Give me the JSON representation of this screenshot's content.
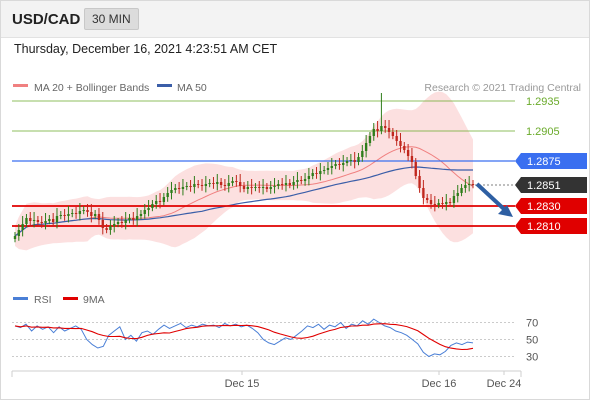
{
  "header": {
    "symbol": "USD/CAD",
    "interval": "30 MIN"
  },
  "timestamp": "Thursday, December 16, 2021 4:23:51 AM CET",
  "copyright": "Research © 2021 Trading Central",
  "colors": {
    "bollinger": "#f08080",
    "ma50": "#3b5ea8",
    "resistance": "#3a6ff0",
    "support": "#e00000",
    "target": "#6aaa2a",
    "last": "#333333",
    "rsi": "#4a7fd6",
    "rsi_ma": "#e00000",
    "arrow": "#2e5fa3"
  },
  "chart_data": [
    {
      "type": "candlestick",
      "title": "USD/CAD",
      "legend": [
        {
          "name": "MA 20 + Bollinger Bands",
          "color": "#f08080"
        },
        {
          "name": "MA 50",
          "color": "#3b5ea8"
        }
      ],
      "legend_position": "top-left",
      "y_range": [
        1.275,
        1.2955
      ],
      "x_ticks": [
        "Dec 15",
        "Dec 16",
        "Dec 24"
      ],
      "levels": [
        {
          "label": "1.2935",
          "value": 1.2935,
          "kind": "target"
        },
        {
          "label": "1.2905",
          "value": 1.2905,
          "kind": "target"
        },
        {
          "label": "1.2875",
          "value": 1.2875,
          "kind": "resistance"
        },
        {
          "label": "1.2851",
          "value": 1.2851,
          "kind": "last"
        },
        {
          "label": "1.2830",
          "value": 1.283,
          "kind": "support"
        },
        {
          "label": "1.2810",
          "value": 1.281,
          "kind": "support"
        }
      ],
      "close": [
        1.28,
        1.2806,
        1.2812,
        1.2818,
        1.2815,
        1.2816,
        1.2814,
        1.2813,
        1.2815,
        1.2817,
        1.2814,
        1.282,
        1.2821,
        1.282,
        1.2822,
        1.2823,
        1.2822,
        1.2825,
        1.2826,
        1.2824,
        1.282,
        1.2822,
        1.2816,
        1.2808,
        1.2806,
        1.281,
        1.2812,
        1.2814,
        1.2813,
        1.2816,
        1.2818,
        1.2816,
        1.282,
        1.2822,
        1.2826,
        1.2828,
        1.2832,
        1.2835,
        1.2834,
        1.2839,
        1.2843,
        1.2846,
        1.2848,
        1.2847,
        1.2849,
        1.285,
        1.2849,
        1.2852,
        1.2851,
        1.285,
        1.2852,
        1.2853,
        1.2852,
        1.2854,
        1.2851,
        1.285,
        1.2853,
        1.2855,
        1.2854,
        1.285,
        1.2847,
        1.2849,
        1.2848,
        1.2849,
        1.2848,
        1.2849,
        1.2847,
        1.2849,
        1.285,
        1.2852,
        1.2851,
        1.2853,
        1.2851,
        1.2854,
        1.2856,
        1.2855,
        1.2857,
        1.286,
        1.2863,
        1.2862,
        1.2865,
        1.2866,
        1.2868,
        1.287,
        1.2872,
        1.2871,
        1.2873,
        1.2875,
        1.2876,
        1.2874,
        1.2879,
        1.2885,
        1.2893,
        1.29,
        1.2907,
        1.2905,
        1.291,
        1.2908,
        1.2904,
        1.29,
        1.2895,
        1.289,
        1.2886,
        1.288,
        1.2874,
        1.286,
        1.2848,
        1.2838,
        1.2836,
        1.2832,
        1.2831,
        1.2833,
        1.2832,
        1.2834,
        1.2833,
        1.284,
        1.2843,
        1.2848,
        1.2851,
        1.2852,
        1.2851
      ]
    },
    {
      "type": "line",
      "title": "RSI",
      "legend": [
        {
          "name": "RSI",
          "color": "#4a7fd6"
        },
        {
          "name": "9MA",
          "color": "#e00000"
        }
      ],
      "legend_position": "top-left",
      "y_range": [
        20,
        80
      ],
      "y_ticks": [
        70,
        50,
        30
      ],
      "rsi": [
        66,
        64,
        68,
        60,
        66,
        62,
        65,
        58,
        65,
        60,
        63,
        66,
        62,
        50,
        44,
        40,
        42,
        55,
        60,
        65,
        50,
        55,
        48,
        58,
        60,
        56,
        62,
        67,
        63,
        66,
        69,
        64,
        67,
        65,
        68,
        66,
        67,
        64,
        69,
        66,
        68,
        65,
        67,
        63,
        58,
        50,
        46,
        44,
        48,
        52,
        50,
        55,
        60,
        66,
        64,
        68,
        62,
        67,
        65,
        70,
        63,
        68,
        66,
        72,
        68,
        74,
        70,
        66,
        64,
        60,
        58,
        55,
        50,
        45,
        35,
        30,
        33,
        32,
        36,
        43,
        46,
        44,
        47,
        46
      ]
    }
  ]
}
